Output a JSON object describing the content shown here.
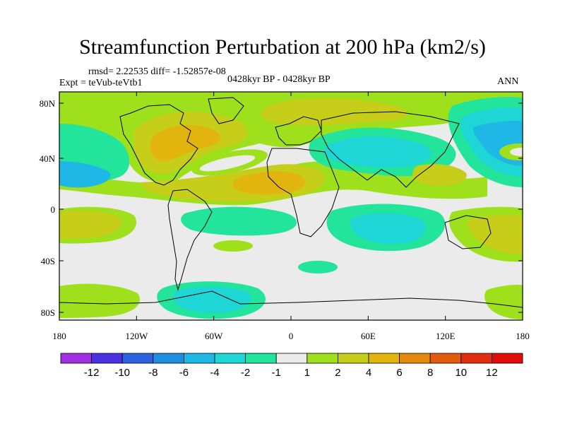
{
  "title": "Streamfunction Perturbation at 200 hPa (km2/s)",
  "stats": "rmsd= 2.22535 diff= -1.52857e-08",
  "experiment": "Expt = teVub-teVtb1",
  "period": "0428kyr BP - 0428kyr BP",
  "season": "ANN",
  "lon_ticks": [
    "180",
    "120W",
    "60W",
    "0",
    "60E",
    "120E",
    "180"
  ],
  "lat_ticks": [
    "80N",
    "40N",
    "0",
    "40S",
    "80S"
  ],
  "colorbar": {
    "labels": [
      "-12",
      "-10",
      "-8",
      "-6",
      "-4",
      "-2",
      "-1",
      "1",
      "2",
      "4",
      "6",
      "8",
      "10",
      "12"
    ],
    "colors": [
      "#9f2fe0",
      "#4b32e0",
      "#2c64e0",
      "#1e8ee0",
      "#1fb8e6",
      "#1fd6d6",
      "#22e49a",
      "#ebebeb",
      "#9ee01c",
      "#c6ce1a",
      "#e2b50e",
      "#e4890c",
      "#e25c0d",
      "#e02e10",
      "#e00c0c"
    ]
  }
}
